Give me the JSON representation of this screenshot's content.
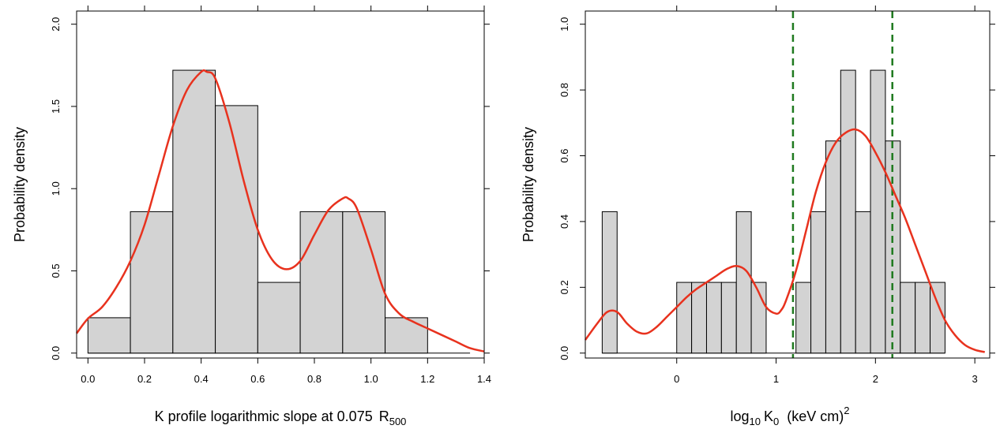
{
  "chart_data": [
    {
      "type": "histogram",
      "xlabel": "K profile logarithmic slope at 0.075",
      "xlabel_symbol": "R",
      "xlabel_subscript": "500",
      "ylabel": "Probability density",
      "xlim": [
        -0.04,
        1.4
      ],
      "ylim": [
        -0.03,
        2.08
      ],
      "xticks": [
        0.0,
        0.2,
        0.4,
        0.6,
        0.8,
        1.0,
        1.2,
        1.4
      ],
      "xtick_labels": [
        "0.0",
        "0.2",
        "0.4",
        "0.6",
        "0.8",
        "1.0",
        "1.2",
        "1.4"
      ],
      "yticks": [
        0.0,
        0.5,
        1.0,
        1.5,
        2.0
      ],
      "ytick_labels": [
        "0.0",
        "0.5",
        "1.0",
        "1.5",
        "2.0"
      ],
      "bins": [
        {
          "x0": 0.0,
          "x1": 0.15,
          "density": 0.215
        },
        {
          "x0": 0.15,
          "x1": 0.3,
          "density": 0.86
        },
        {
          "x0": 0.3,
          "x1": 0.45,
          "density": 1.72
        },
        {
          "x0": 0.45,
          "x1": 0.6,
          "density": 1.505
        },
        {
          "x0": 0.6,
          "x1": 0.75,
          "density": 0.43
        },
        {
          "x0": 0.75,
          "x1": 0.9,
          "density": 0.86
        },
        {
          "x0": 0.9,
          "x1": 1.05,
          "density": 0.86
        },
        {
          "x0": 1.05,
          "x1": 1.2,
          "density": 0.215
        }
      ],
      "baseline_range": [
        0.0,
        1.35
      ],
      "density_curve": {
        "color": "#e8321e",
        "x": [
          -0.05,
          0.0,
          0.05,
          0.1,
          0.15,
          0.2,
          0.25,
          0.3,
          0.35,
          0.4,
          0.42,
          0.45,
          0.5,
          0.55,
          0.6,
          0.65,
          0.7,
          0.75,
          0.8,
          0.85,
          0.9,
          0.92,
          0.95,
          1.0,
          1.05,
          1.1,
          1.15,
          1.2,
          1.25,
          1.3,
          1.35,
          1.4
        ],
        "y": [
          0.12,
          0.21,
          0.28,
          0.4,
          0.56,
          0.78,
          1.08,
          1.38,
          1.6,
          1.71,
          1.71,
          1.67,
          1.4,
          1.05,
          0.75,
          0.57,
          0.51,
          0.56,
          0.72,
          0.87,
          0.94,
          0.94,
          0.88,
          0.63,
          0.36,
          0.24,
          0.19,
          0.15,
          0.11,
          0.07,
          0.03,
          0.01
        ]
      },
      "bar_fill": "#d3d3d3"
    },
    {
      "type": "histogram",
      "xlabel_prefix": "log",
      "xlabel_prefix_subscript": "10",
      "xlabel_symbol": "K",
      "xlabel_symbol_subscript": "0",
      "xlabel_units": "(keV cm)",
      "xlabel_units_superscript": "2",
      "ylabel": "Probability density",
      "xlim": [
        -0.92,
        3.15
      ],
      "ylim": [
        -0.015,
        1.04
      ],
      "xticks": [
        0,
        1,
        2,
        3
      ],
      "xtick_labels": [
        "0",
        "1",
        "2",
        "3"
      ],
      "yticks": [
        0.0,
        0.2,
        0.4,
        0.6,
        0.8,
        1.0
      ],
      "ytick_labels": [
        "0.0",
        "0.2",
        "0.4",
        "0.6",
        "0.8",
        "1.0"
      ],
      "bins": [
        {
          "x0": -0.75,
          "x1": -0.6,
          "density": 0.43
        },
        {
          "x0": 0.0,
          "x1": 0.15,
          "density": 0.215
        },
        {
          "x0": 0.15,
          "x1": 0.3,
          "density": 0.215
        },
        {
          "x0": 0.3,
          "x1": 0.45,
          "density": 0.215
        },
        {
          "x0": 0.45,
          "x1": 0.6,
          "density": 0.215
        },
        {
          "x0": 0.6,
          "x1": 0.75,
          "density": 0.43
        },
        {
          "x0": 0.75,
          "x1": 0.9,
          "density": 0.215
        },
        {
          "x0": 1.2,
          "x1": 1.35,
          "density": 0.215
        },
        {
          "x0": 1.35,
          "x1": 1.5,
          "density": 0.43
        },
        {
          "x0": 1.5,
          "x1": 1.65,
          "density": 0.645
        },
        {
          "x0": 1.65,
          "x1": 1.8,
          "density": 0.86
        },
        {
          "x0": 1.8,
          "x1": 1.95,
          "density": 0.43
        },
        {
          "x0": 1.95,
          "x1": 2.1,
          "density": 0.86
        },
        {
          "x0": 2.1,
          "x1": 2.25,
          "density": 0.645
        },
        {
          "x0": 2.25,
          "x1": 2.4,
          "density": 0.215
        },
        {
          "x0": 2.4,
          "x1": 2.55,
          "density": 0.215
        },
        {
          "x0": 2.55,
          "x1": 2.7,
          "density": 0.215
        }
      ],
      "baseline_range": [
        -0.75,
        2.7
      ],
      "vlines": [
        {
          "x": 1.17,
          "color": "#1f7a1f",
          "style": "dashed"
        },
        {
          "x": 2.17,
          "color": "#1f7a1f",
          "style": "dashed"
        }
      ],
      "density_curve": {
        "color": "#e8321e",
        "x": [
          -0.92,
          -0.8,
          -0.7,
          -0.6,
          -0.5,
          -0.4,
          -0.3,
          -0.2,
          -0.1,
          0.0,
          0.1,
          0.2,
          0.3,
          0.4,
          0.5,
          0.6,
          0.7,
          0.8,
          0.9,
          1.0,
          1.05,
          1.1,
          1.2,
          1.3,
          1.4,
          1.5,
          1.6,
          1.7,
          1.8,
          1.9,
          2.0,
          2.1,
          2.2,
          2.3,
          2.4,
          2.5,
          2.6,
          2.7,
          2.8,
          2.9,
          3.0,
          3.1
        ],
        "y": [
          0.04,
          0.09,
          0.125,
          0.125,
          0.09,
          0.065,
          0.06,
          0.08,
          0.11,
          0.14,
          0.17,
          0.195,
          0.215,
          0.235,
          0.255,
          0.265,
          0.25,
          0.2,
          0.14,
          0.12,
          0.13,
          0.16,
          0.25,
          0.37,
          0.49,
          0.58,
          0.64,
          0.67,
          0.68,
          0.66,
          0.61,
          0.55,
          0.48,
          0.41,
          0.33,
          0.25,
          0.17,
          0.1,
          0.055,
          0.025,
          0.01,
          0.003
        ]
      },
      "bar_fill": "#d3d3d3"
    }
  ]
}
